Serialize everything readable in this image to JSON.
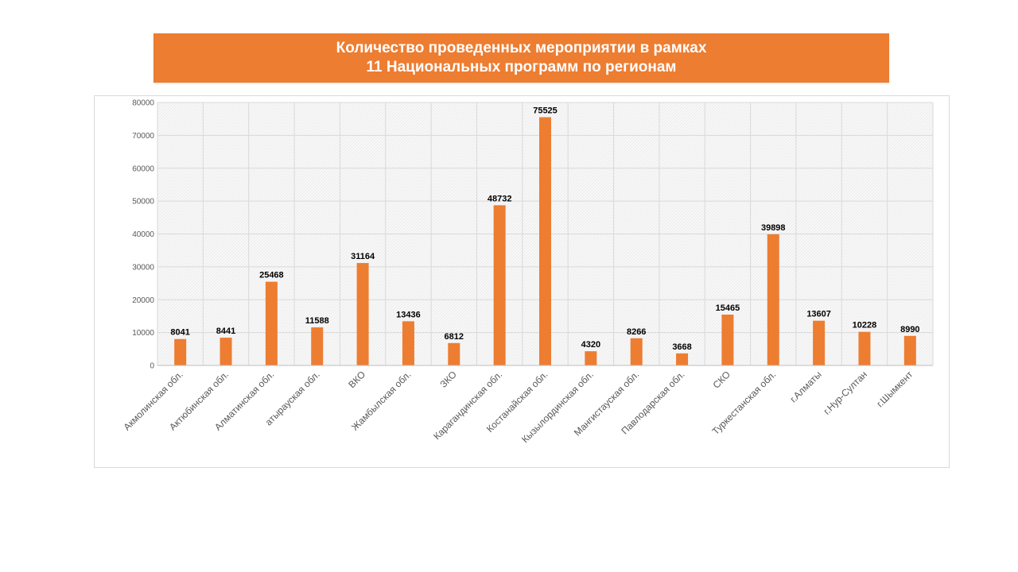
{
  "title": {
    "line1": "Количество проведенных мероприятии в рамках",
    "line2": "11 Национальных программ по регионам"
  },
  "colors": {
    "accent": "#ed7d31",
    "bar": "#ed7d31",
    "grid": "#d9d9d9",
    "plot_bg": "#f2f2f2"
  },
  "chart_data": {
    "type": "bar",
    "title": "Количество проведенных мероприятии в рамках 11 Национальных программ по регионам",
    "xlabel": "",
    "ylabel": "",
    "ylim": [
      0,
      80000
    ],
    "yticks": [
      0,
      10000,
      20000,
      30000,
      40000,
      50000,
      60000,
      70000,
      80000
    ],
    "grid": true,
    "legend": "none",
    "categories": [
      "Акмолинская обл.",
      "Актюбинская обл.",
      "Алматинская обл.",
      "атырауская обл.",
      "ВКО",
      "Жамбылская обл.",
      "ЗКО",
      "Карагандинская обл.",
      "Костанайская обл.",
      "Кызылординская обл.",
      "Мангистауская обл.",
      "Павлодарская обл.",
      "СКО",
      "Туркестанская обл.",
      "г.Алматы",
      "г.Нур-Султан",
      "г.Шымкент"
    ],
    "values": [
      8041,
      8441,
      25468,
      11588,
      31164,
      13436,
      6812,
      48732,
      75525,
      4320,
      8266,
      3668,
      15465,
      39898,
      13607,
      10228,
      8990
    ]
  }
}
